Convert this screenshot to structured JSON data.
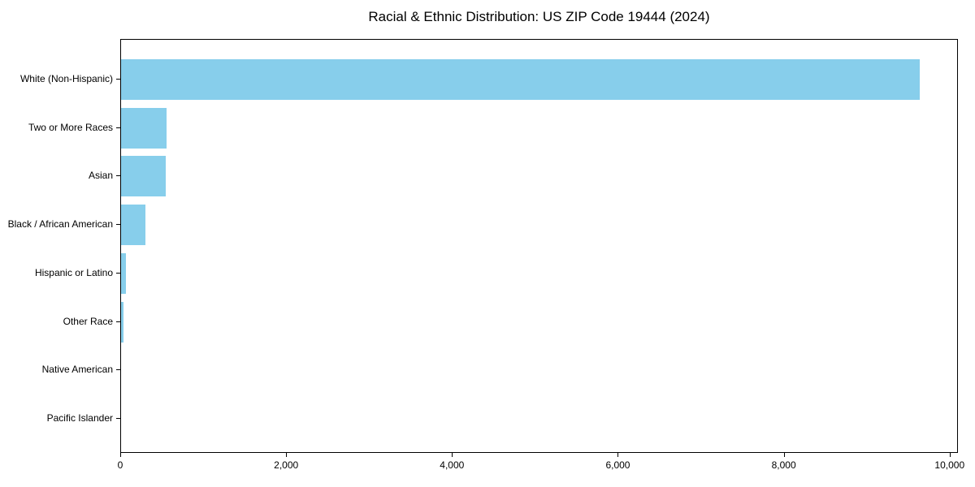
{
  "title": "Racial & Ethnic Distribution: US ZIP Code 19444 (2024)",
  "chart_data": {
    "type": "bar",
    "orientation": "horizontal",
    "title": "Racial & Ethnic Distribution: US ZIP Code 19444 (2024)",
    "xlabel": "",
    "ylabel": "",
    "categories": [
      "White (Non-Hispanic)",
      "Two or More Races",
      "Asian",
      "Black / African American",
      "Hispanic or Latino",
      "Other Race",
      "Native American",
      "Pacific Islander"
    ],
    "values": [
      9625,
      550,
      540,
      295,
      60,
      33,
      0,
      0
    ],
    "xlim": [
      0,
      10100
    ],
    "xticks": [
      0,
      2000,
      4000,
      6000,
      8000,
      10000
    ],
    "xtick_labels": [
      "0",
      "2,000",
      "4,000",
      "6,000",
      "8,000",
      "10,000"
    ],
    "bar_color": "#87CEEB",
    "grid": false,
    "legend": null,
    "background_color": "#ffffff",
    "text_color": "#000000",
    "spine_color": "#000000"
  }
}
